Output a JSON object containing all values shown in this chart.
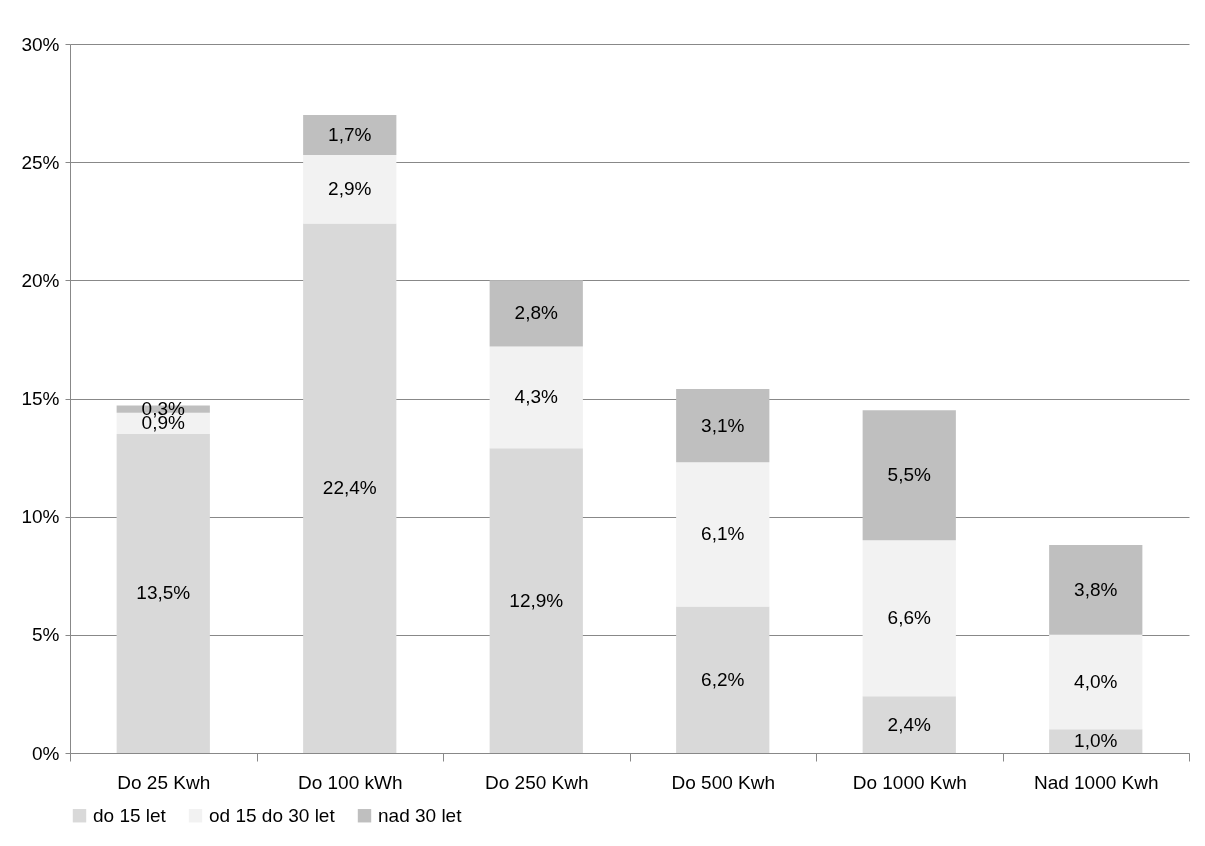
{
  "chart_data": {
    "type": "bar",
    "stacked": true,
    "categories": [
      "Do 25 Kwh",
      "Do 100 kWh",
      "Do 250 Kwh",
      "Do 500 Kwh",
      "Do 1000 Kwh",
      "Nad 1000 Kwh"
    ],
    "series": [
      {
        "name": "do 15 let",
        "color": "#d9d9d9",
        "values": [
          13.5,
          22.4,
          12.9,
          6.2,
          2.4,
          1.0
        ],
        "value_labels": [
          "13,5%",
          "22,4%",
          "12,9%",
          "6,2%",
          "2,4%",
          "1,0%"
        ]
      },
      {
        "name": "od 15 do 30 let",
        "color": "#f2f2f2",
        "values": [
          0.9,
          2.9,
          4.3,
          6.1,
          6.6,
          4.0
        ],
        "value_labels": [
          "0,9%",
          "2,9%",
          "4,3%",
          "6,1%",
          "6,6%",
          "4,0%"
        ]
      },
      {
        "name": "nad 30 let",
        "color": "#bfbfbf",
        "values": [
          0.3,
          1.7,
          2.8,
          3.1,
          5.5,
          3.8
        ],
        "value_labels": [
          "0,3%",
          "1,7%",
          "2,8%",
          "3,1%",
          "5,5%",
          "3,8%"
        ]
      }
    ],
    "ylim": [
      0,
      30
    ],
    "yticks": [
      {
        "value": 0,
        "label": "0%"
      },
      {
        "value": 5,
        "label": "5%"
      },
      {
        "value": 10,
        "label": "10%"
      },
      {
        "value": 15,
        "label": "15%"
      },
      {
        "value": 20,
        "label": "20%"
      },
      {
        "value": 25,
        "label": "25%"
      },
      {
        "value": 30,
        "label": "30%"
      }
    ],
    "grid": "y",
    "legend": "bottom"
  }
}
